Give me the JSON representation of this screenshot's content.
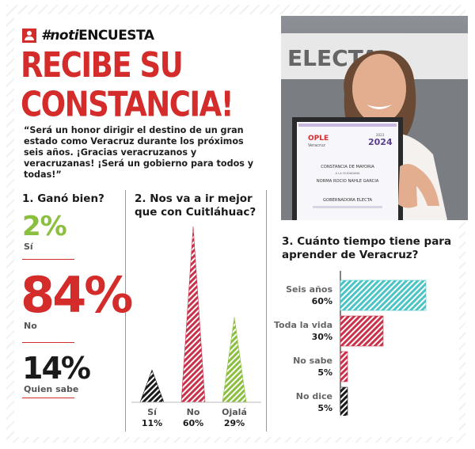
{
  "header": {
    "hashtag_prefix": "#noti",
    "hashtag_suffix": "ENCUESTA",
    "headline_line1": "RECIBE SU",
    "headline_line2": "CONSTANCIA!",
    "quote": "“Será un honor dirigir el destino de un gran estado como Veracruz durante los próximos seis años. ¡Gracias veracruzanos y veracruzanas! ¡Será un gobierno para todos y todas!”"
  },
  "photo": {
    "sign_text": "ELECTA",
    "certificate_logo": "OPLE",
    "certificate_logo_sub": "Veracruz",
    "certificate_year_top": "2023",
    "certificate_year_main": "2024",
    "certificate_title": "CONSTANCIA DE MAYORIA",
    "certificate_sub": "A LA CIUDADANA",
    "certificate_name": "NORMA ROCIO NAHLE GARCIA",
    "certificate_role": "GOBERNADORA ELECTA",
    "icons": [
      "person-icon"
    ]
  },
  "colors": {
    "red": "#d42b2b",
    "green": "#8bbf3f",
    "teal": "#4ac4c4",
    "crimson": "#c8324a",
    "dark": "#1a1a1a"
  },
  "chart_data": [
    {
      "type": "table",
      "title": "1. Ganó bien?",
      "categories": [
        "Sí",
        "No",
        "Quien sabe"
      ],
      "values": [
        2,
        84,
        14
      ],
      "value_labels": [
        "2%",
        "84%",
        "14%"
      ],
      "colors": [
        "#8bbf3f",
        "#d42b2b",
        "#1a1a1a"
      ]
    },
    {
      "type": "bar",
      "title": "2. Nos va a ir mejor que con Cuitláhuac?",
      "categories": [
        "Sí",
        "No",
        "Ojalá"
      ],
      "values": [
        11,
        60,
        29
      ],
      "value_labels": [
        "11%",
        "60%",
        "29%"
      ],
      "colors": [
        "#1a1a1a",
        "#c8324a",
        "#8bbf3f"
      ],
      "ylim": [
        0,
        60
      ]
    },
    {
      "type": "bar",
      "orientation": "horizontal",
      "title": "3. Cuánto tiempo tiene para aprender de Veracruz?",
      "categories": [
        "Seis años",
        "Toda la vida",
        "No sabe",
        "No dice"
      ],
      "values": [
        60,
        30,
        5,
        5
      ],
      "value_labels": [
        "60%",
        "30%",
        "5%",
        "5%"
      ],
      "colors": [
        "#4ac4c4",
        "#c8324a",
        "#c8324a",
        "#1a1a1a"
      ],
      "xlim": [
        0,
        60
      ]
    }
  ]
}
